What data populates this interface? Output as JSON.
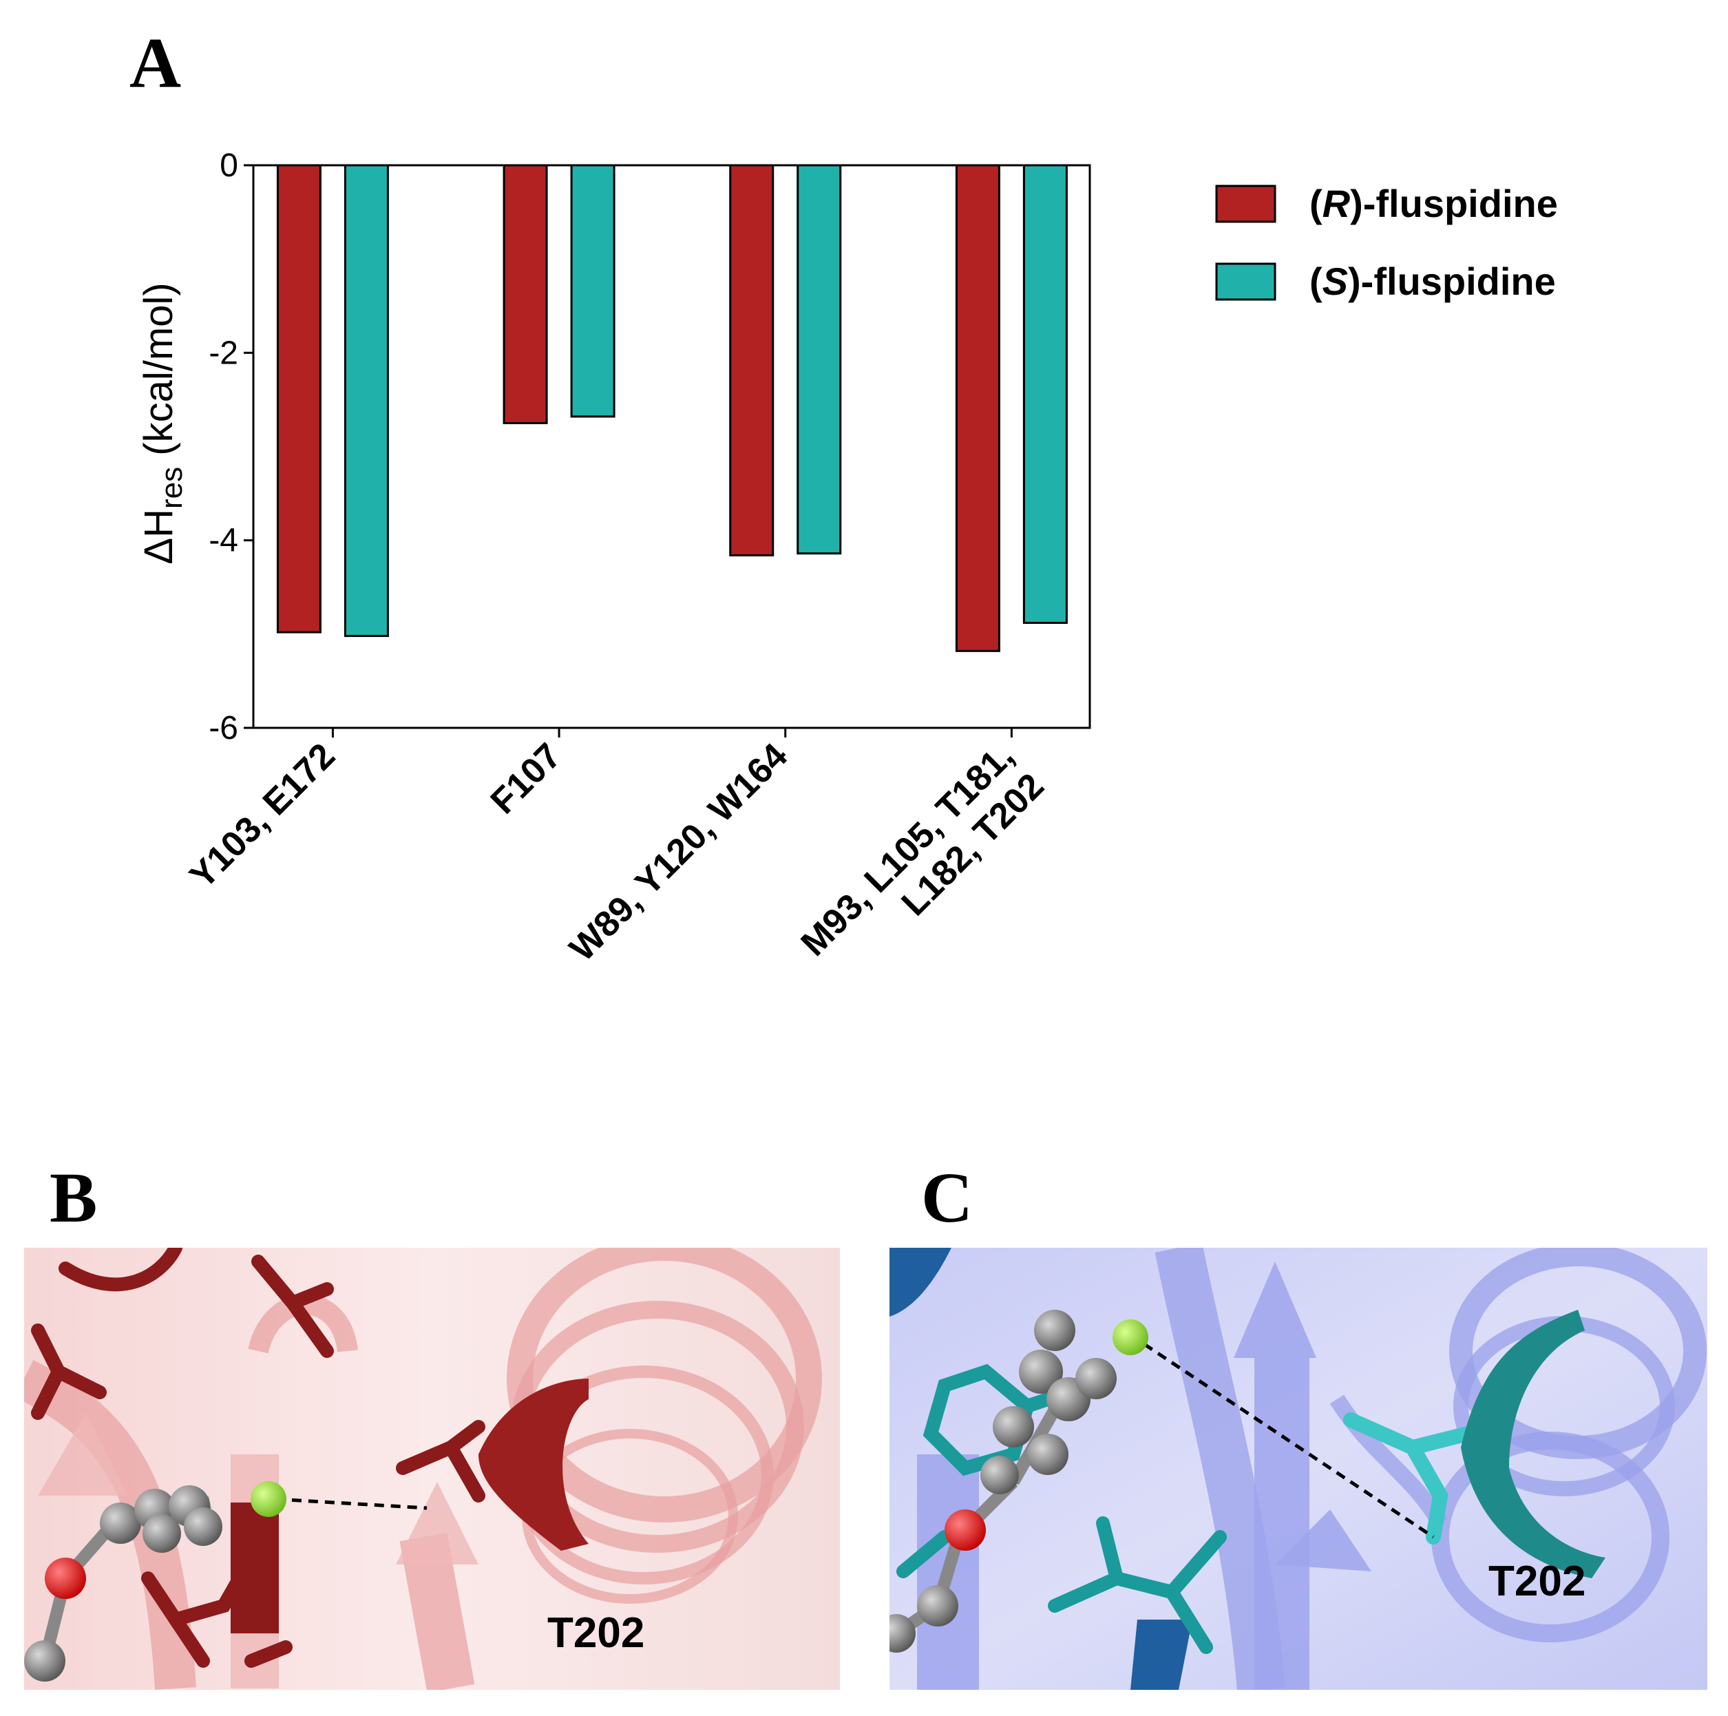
{
  "panels": {
    "a": "A",
    "b": "B",
    "c": "C"
  },
  "chart_data": {
    "type": "bar",
    "ylabel_main": "ΔH",
    "ylabel_sub": "res",
    "ylabel_unit": " (kcal/mol)",
    "ylim": [
      -6,
      0
    ],
    "yticks": [
      0,
      -2,
      -4,
      -6
    ],
    "ytick_labels": [
      "0",
      "-2",
      "-4",
      "-6"
    ],
    "categories": [
      [
        "Y103, E172"
      ],
      [
        "F107"
      ],
      [
        "W89, Y120, W164"
      ],
      [
        "M93, L105, T181,",
        "L182, T202"
      ]
    ],
    "series": [
      {
        "name_prefix": "(",
        "name_italic": "R",
        "name_suffix": ")-fluspidine",
        "color": "#b22222",
        "values": [
          -4.98,
          -2.75,
          -4.16,
          -5.18
        ]
      },
      {
        "name_prefix": "(",
        "name_italic": "S",
        "name_suffix": ")-fluspidine",
        "color": "#20b2aa",
        "values": [
          -5.02,
          -2.68,
          -4.14,
          -4.88
        ]
      }
    ],
    "legend_position": "right",
    "grid": false
  },
  "structures": {
    "b": {
      "residue_label": "T202",
      "main_color": "#8b1a1a",
      "ribbon_color": "#f2b8b8"
    },
    "c": {
      "residue_label": "T202",
      "main_color": "#1a8a8a",
      "ribbon_color": "#a9aef0"
    }
  }
}
